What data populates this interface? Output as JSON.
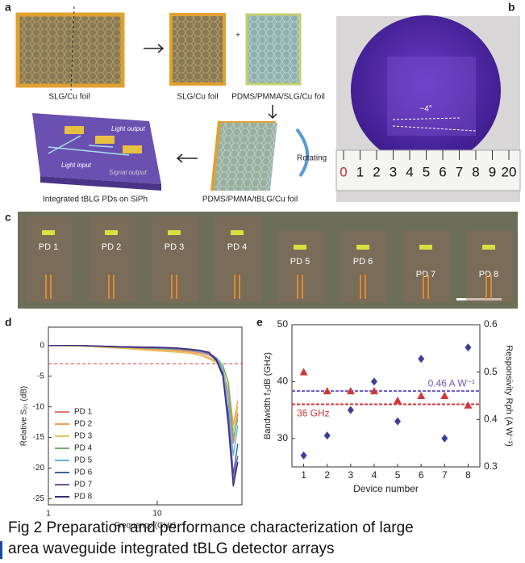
{
  "panel_labels": [
    "a",
    "b",
    "c",
    "d",
    "e"
  ],
  "panel_a": {
    "left_foil": "SLG/Cu foil",
    "cut_foil": "SLG/Cu foil",
    "plus": "+",
    "pmma_foil": "PDMS/PMMA/SLG/Cu foil",
    "rotating": "Rotating",
    "stacked_foil": "PDMS/PMMA/tBLG/Cu foil",
    "chip": "Integrated tBLG PDs on SiPh",
    "light_output": "Light output",
    "light_input": "Light input",
    "signal_output": "Signal output"
  },
  "panel_b": {
    "angle": "~4°",
    "ruler": [
      "0",
      "1",
      "2",
      "3",
      "4",
      "5",
      "6",
      "7",
      "8",
      "9",
      "20"
    ]
  },
  "panel_c": {
    "devices": [
      "PD 1",
      "PD 2",
      "PD 3",
      "PD 4",
      "PD 5",
      "PD 6",
      "PD 7",
      "PD 8"
    ]
  },
  "chart_data": [
    {
      "type": "line",
      "xlabel": "Frequency (GHz)",
      "ylabel": "Relative S₂₁ (dB)",
      "log_x": true,
      "x": [
        1,
        2,
        5,
        10,
        15,
        20,
        25,
        30,
        35,
        40,
        45,
        50,
        55
      ],
      "xlim": [
        1,
        60
      ],
      "xticks": [
        1,
        10
      ],
      "ylim": [
        -26,
        3
      ],
      "yticks": [
        0,
        -5,
        -10,
        -15,
        -20,
        -25
      ],
      "ref_line": {
        "value": -3,
        "color": "#e04040"
      },
      "legend": "lower left",
      "series": [
        {
          "name": "PD 1",
          "color": "#e07a6a",
          "values": [
            0,
            0,
            -0.3,
            -0.5,
            -0.7,
            -0.9,
            -1.2,
            -1.6,
            -2.3,
            -4,
            -8,
            -16,
            -11
          ]
        },
        {
          "name": "PD 2",
          "color": "#f0a050",
          "values": [
            0,
            0,
            -0.4,
            -0.7,
            -0.9,
            -1.1,
            -1.5,
            -2,
            -2.6,
            -3.5,
            -6,
            -13,
            -9
          ]
        },
        {
          "name": "PD 3",
          "color": "#e6c35c",
          "values": [
            0,
            -0.1,
            -0.5,
            -0.9,
            -1.1,
            -1.3,
            -1.6,
            -2.2,
            -2.8,
            -4,
            -7,
            -14,
            -10
          ]
        },
        {
          "name": "PD 4",
          "color": "#6fb46f",
          "values": [
            0,
            0,
            -0.3,
            -0.5,
            -0.6,
            -0.8,
            -1,
            -1.4,
            -2,
            -3.2,
            -6,
            -15,
            -12
          ]
        },
        {
          "name": "PD 5",
          "color": "#62b4dc",
          "values": [
            0,
            0,
            -0.2,
            -0.4,
            -0.5,
            -0.7,
            -1,
            -1.3,
            -2,
            -3.8,
            -9,
            -18,
            -13
          ]
        },
        {
          "name": "PD 6",
          "color": "#3f5fa0",
          "values": [
            0,
            0,
            -0.2,
            -0.3,
            -0.4,
            -0.6,
            -0.8,
            -1.2,
            -2.2,
            -4.5,
            -11,
            -21,
            -16
          ]
        },
        {
          "name": "PD 7",
          "color": "#7052a4",
          "values": [
            0,
            0,
            -0.3,
            -0.4,
            -0.5,
            -0.7,
            -0.9,
            -1.3,
            -2.5,
            -5,
            -12,
            -22,
            -18
          ]
        },
        {
          "name": "PD 8",
          "color": "#3c2a7a",
          "values": [
            0,
            0,
            -0.2,
            -0.3,
            -0.4,
            -0.6,
            -0.8,
            -1.1,
            -2.4,
            -4.8,
            -13,
            -23,
            -19
          ]
        }
      ]
    },
    {
      "type": "scatter",
      "xlabel": "Device number",
      "ylabel": "Bandwidth f₃dB (GHz)",
      "y2label": "Responsivity Rph (A W⁻¹)",
      "x": [
        1,
        2,
        3,
        4,
        5,
        6,
        7,
        8
      ],
      "xlim": [
        0.5,
        8.5
      ],
      "xticks": [
        1,
        2,
        3,
        4,
        5,
        6,
        7,
        8
      ],
      "ylim": [
        25,
        50
      ],
      "yticks": [
        30,
        40,
        50
      ],
      "y2lim": [
        0.3,
        0.6
      ],
      "y2ticks": [
        0.3,
        0.4,
        0.5,
        0.6
      ],
      "series": [
        {
          "color": "#3a3f9a",
          "marker": "diamond",
          "values": [
            27,
            30.5,
            35,
            40,
            33,
            44,
            30,
            46
          ]
        },
        {
          "color": "#d03838",
          "marker": "triangle",
          "axis": "y2",
          "values": [
            0.5,
            0.46,
            0.46,
            0.46,
            0.44,
            0.45,
            0.45,
            0.43
          ]
        }
      ],
      "ref_lines": [
        {
          "value": 36,
          "label": "36 GHz",
          "color": "#d03838"
        },
        {
          "value": 0.46,
          "axis": "y2",
          "label": "0.46 A W⁻¹",
          "color": "#6a58c0"
        }
      ]
    }
  ],
  "caption": [
    "Fig 2 Preparation and performance characterization of large",
    "area waveguide integrated tBLG detector arrays"
  ]
}
